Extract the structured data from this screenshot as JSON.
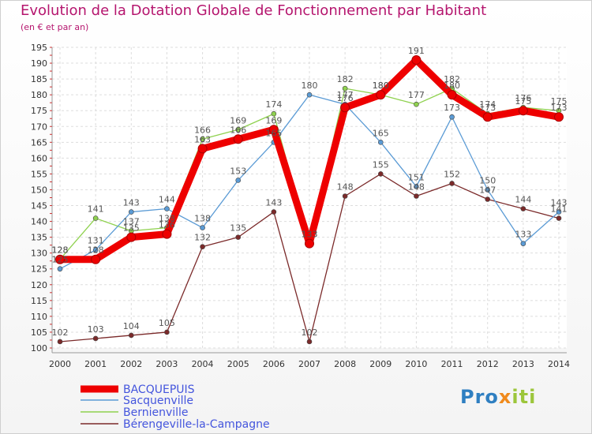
{
  "chart_data": {
    "type": "line",
    "title": "Evolution de la Dotation Globale de Fonctionnement par Habitant",
    "subtitle": "(en € et par an)",
    "x": [
      "2000",
      "2001",
      "2002",
      "2003",
      "2004",
      "2005",
      "2006",
      "2007",
      "2008",
      "2009",
      "2010",
      "2011",
      "2012",
      "2013",
      "2014"
    ],
    "ylim": [
      100,
      195
    ],
    "yticks": [
      100,
      105,
      110,
      115,
      120,
      125,
      130,
      135,
      140,
      145,
      150,
      155,
      160,
      165,
      170,
      175,
      180,
      185,
      190,
      195
    ],
    "grid": true,
    "legend_position": "bottom-left",
    "series": [
      {
        "name": "BACQUEPUIS",
        "color": "#ee0000",
        "values": [
          128,
          128,
          135,
          136,
          163,
          166,
          169,
          133,
          176,
          180,
          191,
          180,
          173,
          175,
          173
        ]
      },
      {
        "name": "Sacquenville",
        "color": "#5b9bd5",
        "values": [
          125,
          131,
          143,
          144,
          138,
          153,
          165,
          180,
          177,
          165,
          151,
          173,
          150,
          133,
          143
        ]
      },
      {
        "name": "Bernienville",
        "color": "#8fd14f",
        "values": [
          128,
          141,
          137,
          138,
          166,
          169,
          174,
          133,
          182,
          180,
          177,
          182,
          174,
          176,
          175
        ]
      },
      {
        "name": "Bérengeville-la-Campagne",
        "color": "#7b2a2a",
        "values": [
          102,
          103,
          104,
          105,
          132,
          135,
          143,
          102,
          148,
          155,
          148,
          152,
          147,
          144,
          141
        ]
      }
    ]
  },
  "logo": {
    "part1": "Pro",
    "part2": "x",
    "part3": "iti"
  }
}
